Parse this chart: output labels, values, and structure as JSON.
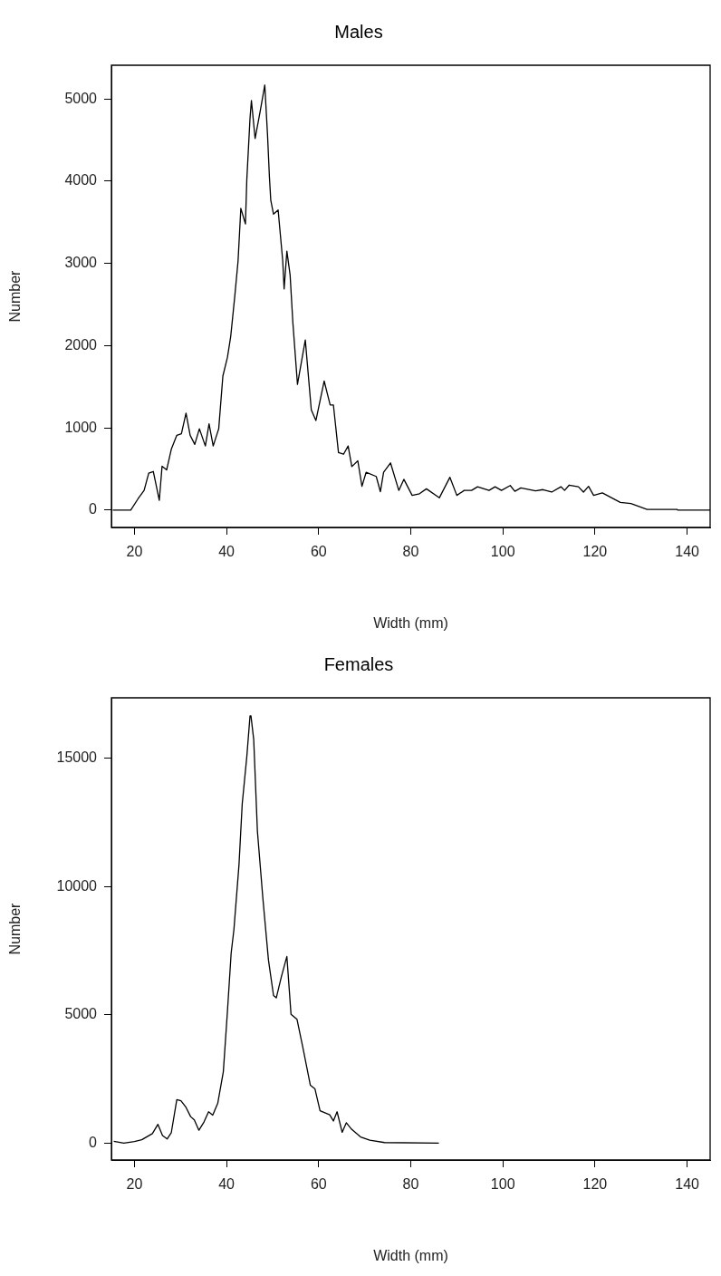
{
  "chart_data": [
    {
      "type": "line",
      "title": "Males",
      "xlabel": "Width (mm)",
      "ylabel": "Number",
      "color": "#000000",
      "x": [
        15.3,
        19.2,
        20.8,
        22.1,
        23.1,
        24.1,
        25.4,
        26,
        27,
        28,
        29.2,
        30.2,
        31.2,
        32.1,
        33.1,
        34.1,
        35.4,
        36.2,
        37.1,
        38.3,
        39.2,
        40.2,
        40.9,
        41.8,
        42.5,
        43.1,
        44.1,
        44.4,
        45.1,
        45.4,
        46.2,
        47.3,
        48.3,
        48.9,
        49.3,
        49.6,
        50.2,
        51.2,
        52.2,
        52.5,
        53.1,
        53.8,
        54.4,
        55.4,
        57.1,
        58.4,
        59.4,
        61.2,
        62.5,
        63.2,
        64.3,
        65.4,
        66.4,
        67.2,
        68.5,
        69.4,
        70.3,
        72.5,
        73.4,
        74.1,
        75.6,
        77.4,
        78.5,
        80.3,
        81.9,
        83.4,
        86.2,
        88.5,
        90,
        91.6,
        93.2,
        94.5,
        97,
        98.3,
        99.7,
        101.6,
        102.6,
        103.9,
        107.1,
        108.7,
        110.6,
        112.6,
        113.4,
        114.4,
        116.4,
        117.5,
        118.6,
        119.7,
        121.6,
        125.5,
        127.8,
        131.3,
        137.8,
        138,
        145
      ],
      "values": [
        0,
        0,
        140,
        240,
        450,
        470,
        120,
        535,
        490,
        740,
        910,
        930,
        1180,
        910,
        800,
        990,
        780,
        1050,
        780,
        990,
        1630,
        1860,
        2110,
        2610,
        3030,
        3670,
        3480,
        4020,
        4770,
        4980,
        4520,
        4850,
        5170,
        4560,
        4060,
        3770,
        3600,
        3650,
        3030,
        2690,
        3150,
        2860,
        2280,
        1530,
        2070,
        1220,
        1090,
        1570,
        1280,
        1280,
        700,
        680,
        780,
        530,
        600,
        290,
        460,
        410,
        225,
        460,
        575,
        240,
        375,
        180,
        200,
        260,
        150,
        400,
        180,
        240,
        240,
        285,
        240,
        285,
        240,
        300,
        230,
        270,
        235,
        250,
        220,
        285,
        240,
        305,
        285,
        220,
        290,
        180,
        210,
        95,
        80,
        10,
        10,
        0,
        0
      ],
      "xlim": [
        15,
        145
      ],
      "xticks": [
        20,
        40,
        60,
        80,
        100,
        120,
        140
      ],
      "ylim": [
        -210,
        5410
      ],
      "yticks": [
        0,
        1000,
        2000,
        3000,
        4000,
        5000
      ]
    },
    {
      "type": "line",
      "title": "Females",
      "xlabel": "Width (mm)",
      "ylabel": "Number",
      "color": "#000000",
      "x": [
        15.5,
        17.7,
        20,
        21.6,
        23.9,
        25.1,
        26.1,
        27.1,
        28,
        29.2,
        30.1,
        31.2,
        32.2,
        33,
        34,
        35.1,
        36.1,
        37,
        38.1,
        39.3,
        40.2,
        41,
        41.6,
        42.7,
        43.4,
        44.4,
        45.1,
        45.3,
        45.9,
        46.7,
        47.9,
        49.1,
        50.2,
        50.8,
        51.9,
        53.1,
        54,
        55.3,
        56.6,
        58.2,
        59.2,
        60.3,
        62.4,
        63.2,
        64,
        65.1,
        66,
        67.2,
        69.1,
        71.1,
        74.3,
        86.1
      ],
      "values": [
        70,
        0,
        60,
        130,
        370,
        730,
        290,
        160,
        400,
        1690,
        1650,
        1390,
        1030,
        900,
        500,
        820,
        1220,
        1090,
        1560,
        2780,
        5150,
        7400,
        8320,
        10840,
        13210,
        15060,
        16650,
        16650,
        15720,
        12160,
        9510,
        7130,
        5750,
        5660,
        6480,
        7270,
        5020,
        4820,
        3700,
        2250,
        2110,
        1260,
        1100,
        860,
        1220,
        420,
        790,
        530,
        240,
        110,
        20,
        0
      ],
      "xlim": [
        15,
        145
      ],
      "xticks": [
        20,
        40,
        60,
        80,
        100,
        120,
        140
      ],
      "ylim": [
        -660,
        17350
      ],
      "yticks": [
        0,
        5000,
        10000,
        15000
      ]
    }
  ]
}
